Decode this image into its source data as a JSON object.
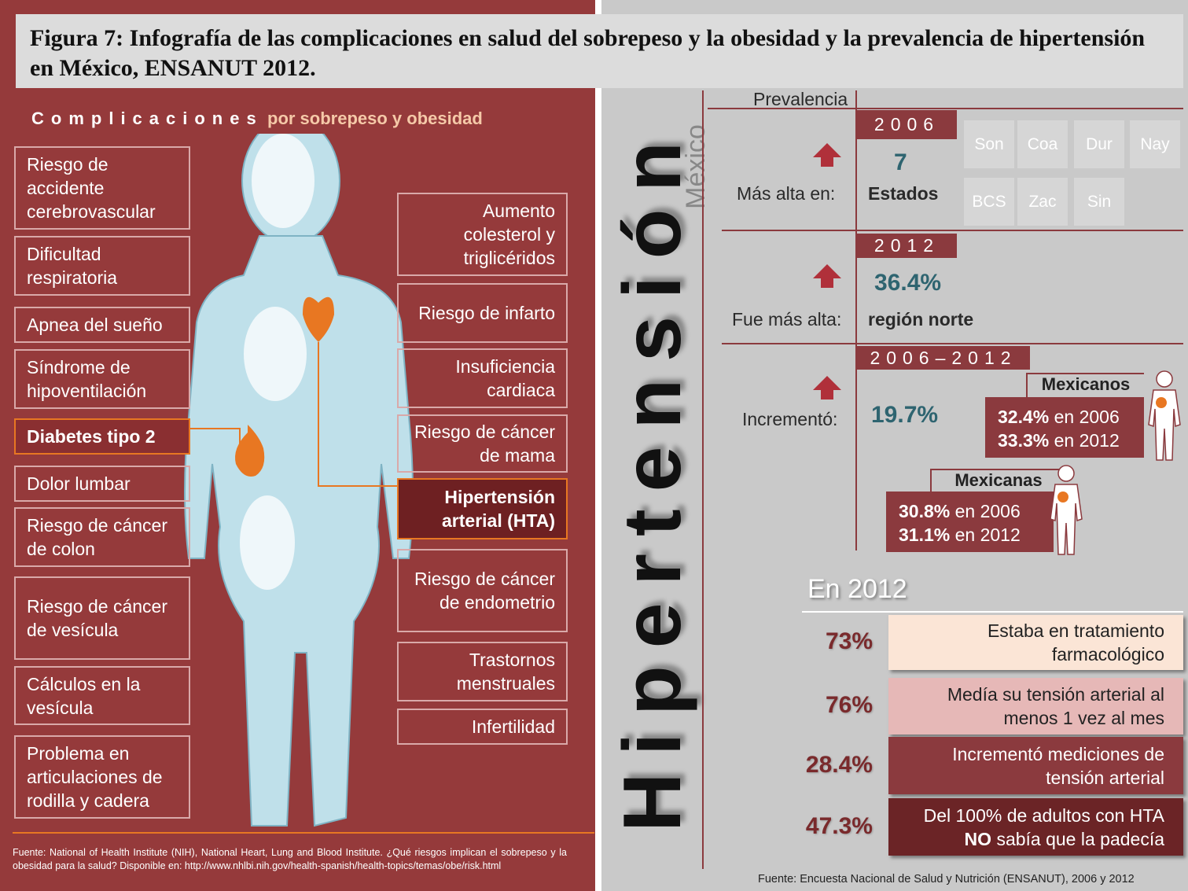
{
  "header": {
    "title": "Figura 7: Infografía de las complicaciones en salud del sobrepeso y la obesidad y la prevalencia de hipertensión en México, ENSANUT 2012."
  },
  "left": {
    "heading": "Complicaciones",
    "subheading": "por sobrepeso y obesidad",
    "left_items": [
      "Riesgo de accidente cerebrovascular",
      "Dificultad respiratoria",
      "Apnea del sueño",
      "Síndrome de hipoventilación",
      "Diabetes tipo 2",
      "Dolor lumbar",
      "Riesgo de cáncer de colon",
      "Riesgo de cáncer de vesícula",
      "Cálculos en la vesícula",
      "Problema en articulaciones de rodilla y cadera"
    ],
    "right_items": [
      "Aumento colesterol y triglicéridos",
      "Riesgo de infarto",
      "Insuficiencia cardiaca",
      "Riesgo de cáncer de mama",
      "Hipertensión arterial (HTA)",
      "Riesgo de cáncer de endometrio",
      "Trastornos menstruales",
      "Infertilidad"
    ],
    "source": "Fuente: National of Health Institute (NIH), National Heart, Lung and Blood Institute. ¿Qué riesgos implican el sobrepeso y la obesidad para la salud? Disponible en: http://www.nhlbi.nih.gov/health-spanish/health-topics/temas/obe/risk.html"
  },
  "right": {
    "title": "Hipertensión",
    "subtitle": "México",
    "prevalence_label": "Prevalencia",
    "y2006": {
      "year": "2006",
      "label": "Más alta en:",
      "value": "7",
      "unit": "Estados",
      "states": [
        "Son",
        "Coa",
        "Dur",
        "Nay",
        "BCS",
        "Zac",
        "Sin"
      ]
    },
    "y2012": {
      "year": "2012",
      "label": "Fue más alta:",
      "value": "36.4%",
      "unit": "región norte"
    },
    "change": {
      "year": "2006–2012",
      "label": "Incrementó:",
      "value": "19.7%",
      "men": {
        "title": "Mexicanos",
        "rows": [
          {
            "value": "32.4%",
            "text": "en 2006"
          },
          {
            "value": "33.3%",
            "text": "en 2012"
          }
        ]
      },
      "women": {
        "title": "Mexicanas",
        "rows": [
          {
            "value": "30.8%",
            "text": "en 2006"
          },
          {
            "value": "31.1%",
            "text": "en 2012"
          }
        ]
      }
    },
    "in2012": {
      "heading": "En 2012",
      "items": [
        {
          "value": "73%",
          "text": "Estaba en tratamiento farmacológico"
        },
        {
          "value": "76%",
          "text": "Medía su tensión arterial al menos 1 vez al mes"
        },
        {
          "value": "28.4%",
          "text": "Incrementó mediciones de tensión arterial"
        },
        {
          "value": "47.3%",
          "text": "Del 100% de adultos con HTA",
          "emphasis": "NO",
          "text2": "sabía que la padecía"
        }
      ]
    },
    "source": "Fuente: Encuesta Nacional de Salud y Nutrición (ENSANUT), 2006 y 2012"
  }
}
